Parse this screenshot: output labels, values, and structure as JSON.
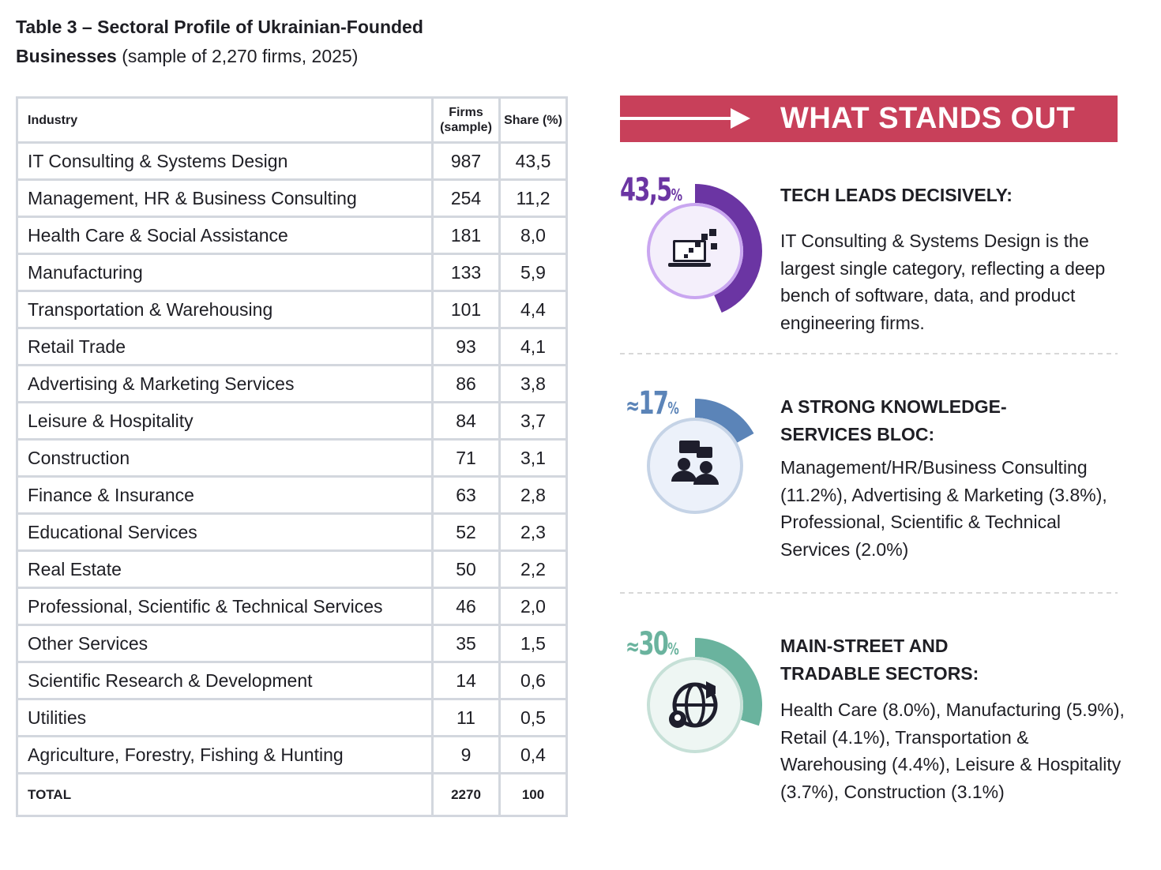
{
  "title": {
    "bold": "Table 3 – Sectoral Profile of Ukrainian-Founded Businesses",
    "rest": "(sample of 2,270 firms, 2025)"
  },
  "table": {
    "header": [
      "Industry",
      "Firms (sample)",
      "Share (%)"
    ],
    "rows": [
      [
        "IT Consulting & Systems Design",
        "987",
        "43,5"
      ],
      [
        "Management, HR & Business Consulting",
        "254",
        "11,2"
      ],
      [
        "Health Care & Social Assistance",
        "181",
        "8,0"
      ],
      [
        "Manufacturing",
        "133",
        "5,9"
      ],
      [
        "Transportation & Warehousing",
        "101",
        "4,4"
      ],
      [
        "Retail Trade",
        "93",
        "4,1"
      ],
      [
        "Advertising & Marketing Services",
        "86",
        "3,8"
      ],
      [
        "Leisure & Hospitality",
        "84",
        "3,7"
      ],
      [
        "Construction",
        "71",
        "3,1"
      ],
      [
        "Finance & Insurance",
        "63",
        "2,8"
      ],
      [
        "Educational Services",
        "52",
        "2,3"
      ],
      [
        "Real Estate",
        "50",
        "2,2"
      ],
      [
        "Professional, Scientific & Technical Services",
        "46",
        "2,0"
      ],
      [
        "Other Services",
        "35",
        "1,5"
      ],
      [
        "Scientific Research & Development",
        "14",
        "0,6"
      ],
      [
        "Utilities",
        "11",
        "0,5"
      ],
      [
        "Agriculture, Forestry, Fishing & Hunting",
        "9",
        "0,4"
      ]
    ],
    "total": [
      "TOTAL",
      "2270",
      "100"
    ]
  },
  "panel": {
    "heading": "WHAT STANDS OUT",
    "items": [
      {
        "share": 43.5,
        "label": "43,5",
        "unit": "%",
        "color": "#6b35a3",
        "title": "TECH LEADS DECISIVELY:",
        "text": "IT Consulting & Systems Design is the largest single category, reflecting a deep bench of software, data, and product engineering firms."
      },
      {
        "prefix": "≈",
        "share": 17,
        "label": "17",
        "unit": "%",
        "color": "#5b84b8",
        "title": "A STRONG KNOWLEDGE-SERVICES BLOC:",
        "text": "Management/HR/Business Consulting (11.2%), Advertising & Marketing (3.8%), Professional, Scientific & Technical Services (2.0%)"
      },
      {
        "prefix": "≈",
        "share": 30,
        "label": "30",
        "unit": "%",
        "color": "#6ab39e",
        "title": "MAIN-STREET AND TRADABLE SECTORS:",
        "text": "Health Care (8.0%), Manufacturing (5.9%), Retail (4.1%), Transportation & Warehousing (4.4%), Leisure & Hospitality (3.7%), Construction (3.1%)"
      }
    ]
  }
}
